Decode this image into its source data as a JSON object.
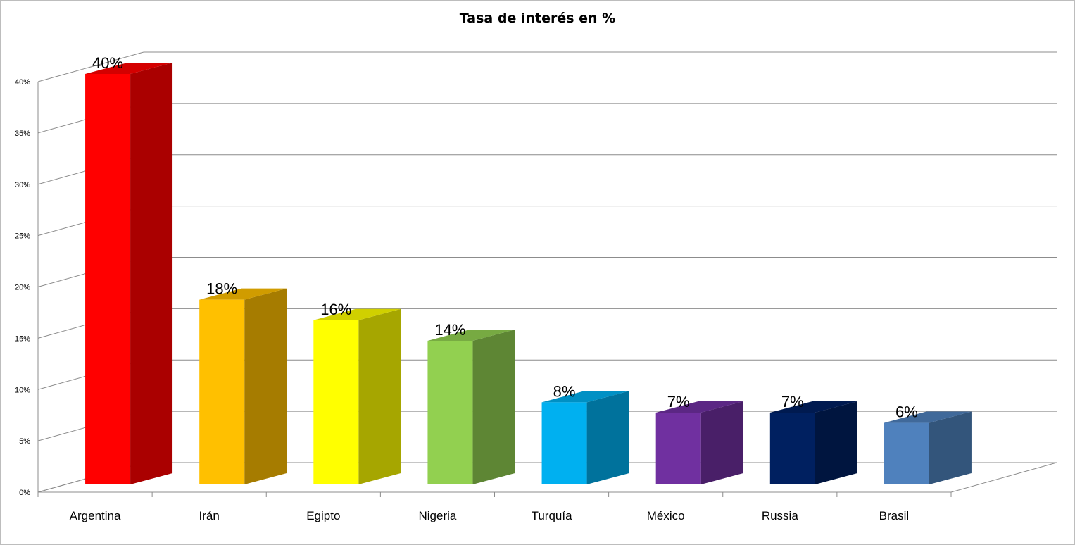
{
  "chart_data": {
    "type": "bar",
    "title": "Tasa de interés en %",
    "categories": [
      "Argentina",
      "Irán",
      "Egipto",
      "Nigeria",
      "Turquía",
      "México",
      "Russia",
      "Brasil"
    ],
    "values": [
      40,
      18,
      16,
      14,
      8,
      7,
      7,
      6
    ],
    "data_labels": [
      "40%",
      "18%",
      "16%",
      "14%",
      "8%",
      "7%",
      "7%",
      "6%"
    ],
    "ylim": [
      0,
      40
    ],
    "yticks": [
      0,
      5,
      10,
      15,
      20,
      25,
      30,
      35,
      40
    ],
    "ytick_labels": [
      "0%",
      "5%",
      "10%",
      "15%",
      "20%",
      "25%",
      "30%",
      "35%",
      "40%"
    ],
    "grid": true,
    "legend": "none",
    "style": "3d-column",
    "colors": {
      "front": [
        "#ff0000",
        "#ffc000",
        "#ffff00",
        "#92d050",
        "#00b0f0",
        "#7030a0",
        "#002060",
        "#4f81bd"
      ],
      "side": [
        "#aa0000",
        "#a67c00",
        "#a6a600",
        "#5e8634",
        "#00729c",
        "#491f68",
        "#00153f",
        "#33557b"
      ],
      "top": [
        "#d40000",
        "#d09c00",
        "#d0d000",
        "#77aa42",
        "#0090c4",
        "#5b2784",
        "#001a50",
        "#40699a"
      ]
    }
  }
}
